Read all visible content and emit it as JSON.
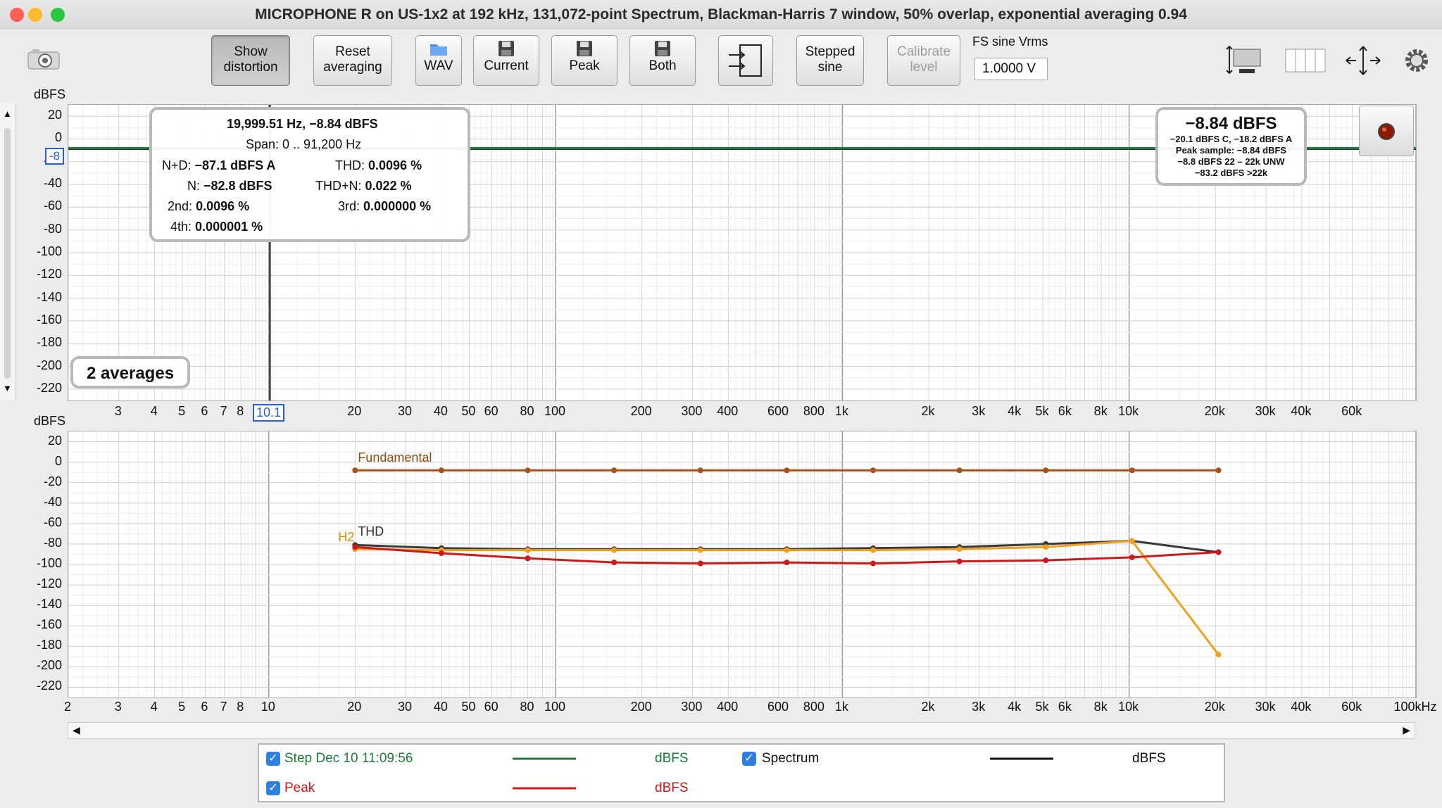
{
  "window": {
    "title": "MICROPHONE R on US-1x2 at 192 kHz, 131,072-point Spectrum, Blackman-Harris 7 window, 50% overlap, exponential averaging 0.94"
  },
  "toolbar": {
    "show_distortion": [
      "Show",
      "distortion"
    ],
    "reset_averaging": [
      "Reset",
      "averaging"
    ],
    "wav": "WAV",
    "current": "Current",
    "peak": "Peak",
    "both": "Both",
    "stepped_sine": [
      "Stepped",
      "sine"
    ],
    "calibrate_level": [
      "Calibrate",
      "level"
    ],
    "fs_sine_label": "FS sine Vrms",
    "fs_sine_value": "1.0000 V"
  },
  "upper_plot": {
    "y_unit": "dBFS",
    "y_ticks": [
      "20",
      "0",
      "-20",
      "-40",
      "-60",
      "-80",
      "-100",
      "-120",
      "-140",
      "-160",
      "-180",
      "-200",
      "-220"
    ],
    "cursor_marker_y": "-8",
    "cursor_marker_x": "10.1",
    "averages_badge": "2 averages",
    "x_ticks": [
      "3",
      "4",
      "5",
      "6",
      "7",
      "8",
      "20",
      "30",
      "40",
      "50",
      "60",
      "80",
      "100",
      "200",
      "300",
      "400",
      "600",
      "800",
      "1k",
      "2k",
      "3k",
      "4k",
      "5k",
      "6k",
      "8k",
      "10k",
      "20k",
      "30k",
      "40k",
      "60k"
    ]
  },
  "readout": {
    "line1": "19,999.51 Hz, −8.84 dBFS",
    "span": "Span: 0 .. 91,200 Hz",
    "nd_label": "N+D:",
    "nd_value": "−87.1 dBFS A",
    "thd_label": "THD:",
    "thd_value": "0.0096 %",
    "n_label": "N:",
    "n_value": "−82.8 dBFS",
    "thdn_label": "THD+N:",
    "thdn_value": "0.022 %",
    "h2_label": "2nd:",
    "h2_value": "0.0096 %",
    "h3_label": "3rd:",
    "h3_value": "0.000000 %",
    "h4_label": "4th:",
    "h4_value": "0.000001 %"
  },
  "level_box": {
    "main": "−8.84 dBFS",
    "l1": "−20.1 dBFS C, −18.2 dBFS A",
    "l2": "Peak sample: −8.84 dBFS",
    "l3": "−8.8 dBFS 22 – 22k UNW",
    "l4": "−83.2 dBFS >22k"
  },
  "lower_plot": {
    "y_unit": "dBFS",
    "y_ticks": [
      "20",
      "0",
      "-20",
      "-40",
      "-60",
      "-80",
      "-100",
      "-120",
      "-140",
      "-160",
      "-180",
      "-200",
      "-220"
    ],
    "x_ticks": [
      "2",
      "3",
      "4",
      "5",
      "6",
      "7",
      "8",
      "10",
      "20",
      "30",
      "40",
      "50",
      "60",
      "80",
      "100",
      "200",
      "300",
      "400",
      "600",
      "800",
      "1k",
      "2k",
      "3k",
      "4k",
      "5k",
      "6k",
      "8k",
      "10k",
      "20k",
      "30k",
      "40k",
      "60k",
      "100kHz"
    ],
    "label_fundamental": "Fundamental",
    "label_thd": "THD",
    "label_h2": "H2"
  },
  "chart_data": {
    "type": "line",
    "xscale": "log",
    "xlim": [
      2,
      100000
    ],
    "ylim": [
      -230,
      30
    ],
    "x": [
      20,
      40,
      80,
      160,
      320,
      640,
      1280,
      2560,
      5120,
      10240,
      20480
    ],
    "series": [
      {
        "name": "Fundamental",
        "color": "#a8521a",
        "values": [
          -8,
          -8,
          -8,
          -8,
          -8,
          -8,
          -8,
          -8,
          -8,
          -8,
          -8
        ]
      },
      {
        "name": "THD",
        "color": "#3a3a3a",
        "values": [
          -81,
          -84,
          -85,
          -85,
          -85,
          -85,
          -84,
          -83,
          -80,
          -77,
          -88
        ]
      },
      {
        "name": "H2",
        "color": "#f0a020",
        "values": [
          -85,
          -86,
          -86,
          -86,
          -86,
          -86,
          -86,
          -85,
          -83,
          -77,
          -188
        ]
      },
      {
        "name": "",
        "color": "#cc1a1a",
        "values": [
          -83,
          -89,
          -94,
          -98,
          -99,
          -98,
          -99,
          -97,
          -96,
          -93,
          -88
        ]
      }
    ]
  },
  "legend": {
    "step_name": "Step Dec 10 11:09:56",
    "step_unit": "dBFS",
    "spectrum_name": "Spectrum",
    "spectrum_unit": "dBFS",
    "peak_name": "Peak",
    "peak_unit": "dBFS",
    "colors": {
      "step": "#1f7a3a",
      "spectrum": "#111111",
      "peak": "#cc1a1a"
    }
  }
}
